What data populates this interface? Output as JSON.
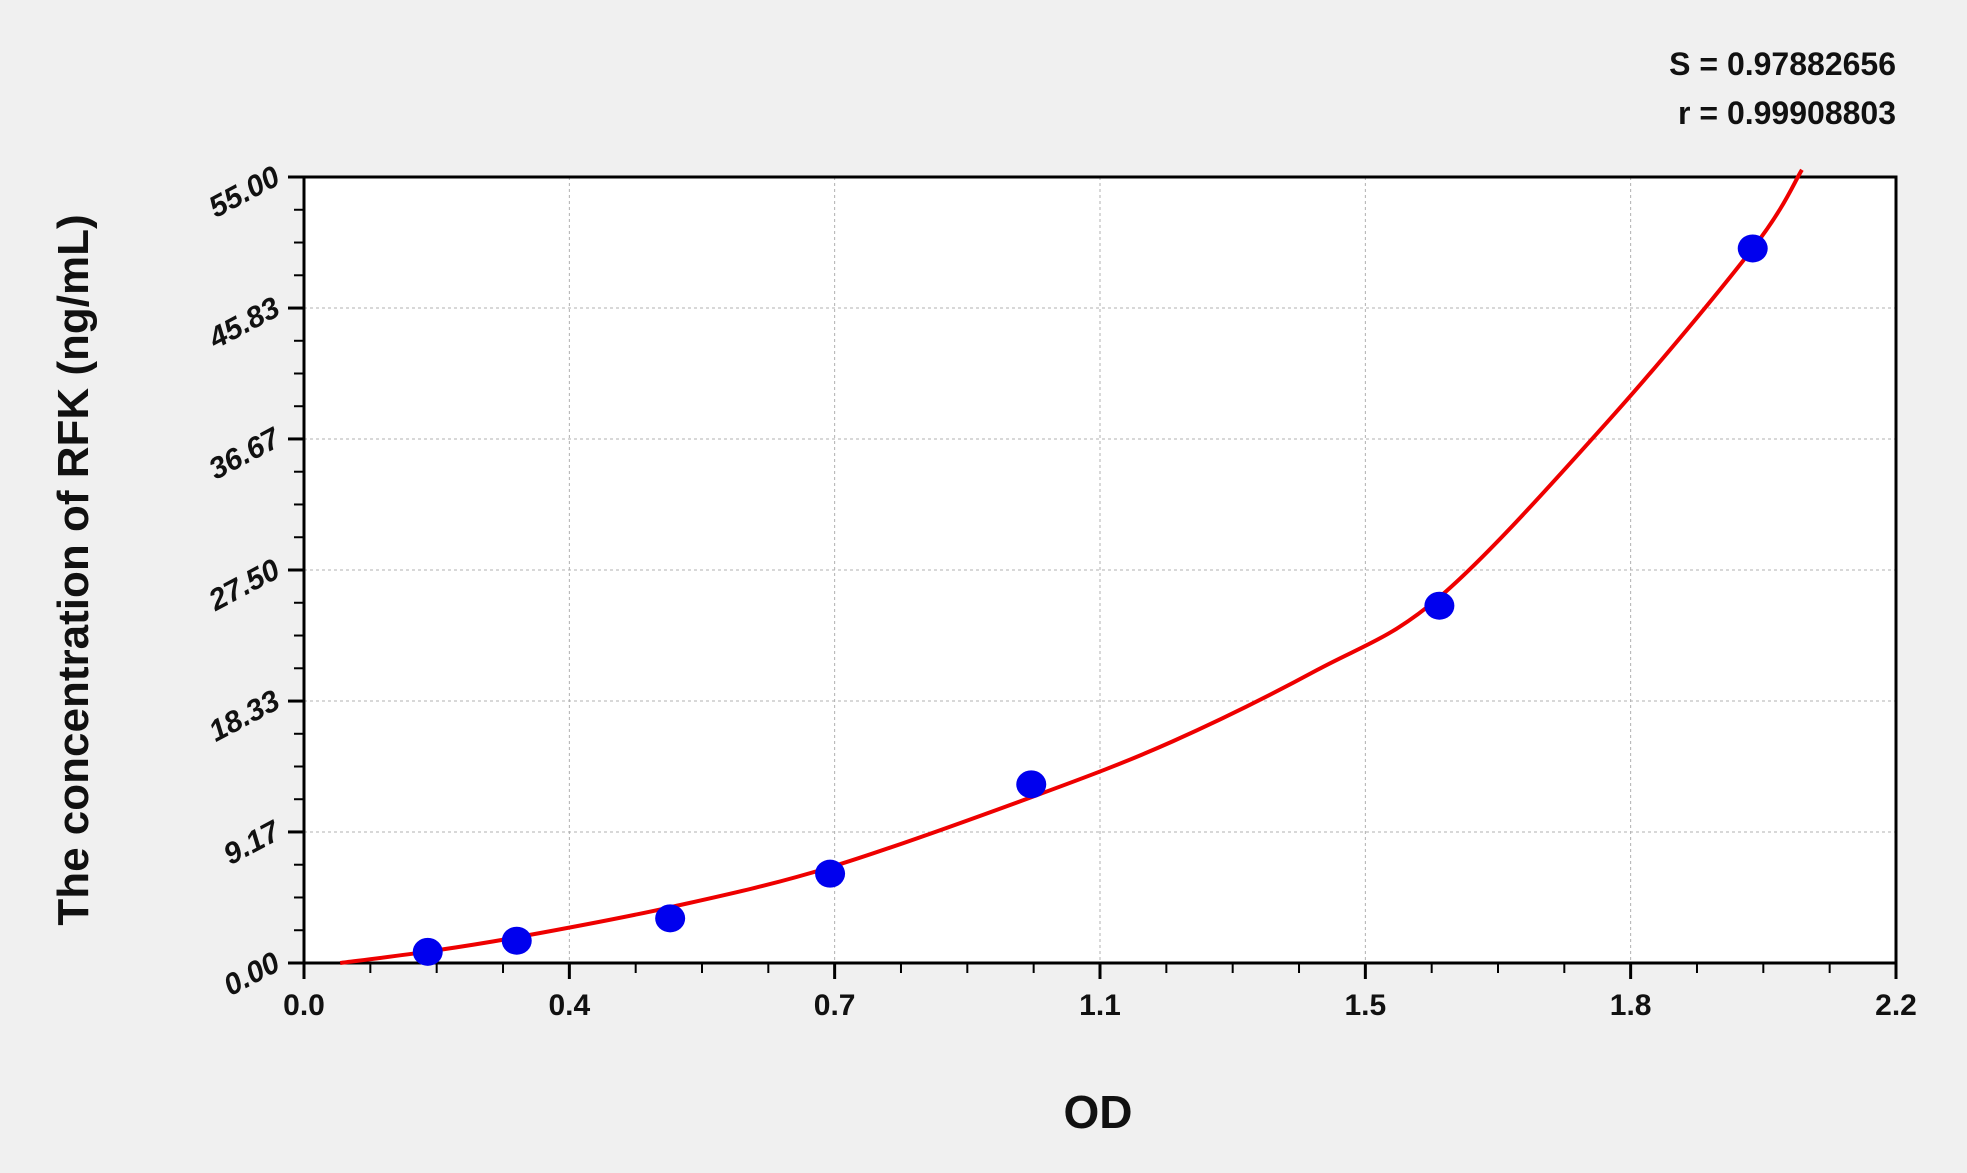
{
  "chart_data": {
    "type": "scatter",
    "xlabel": "OD",
    "ylabel": "The concentration of RFK (ng/mL)",
    "xlim": [
      0,
      2.2
    ],
    "ylim": [
      0,
      55
    ],
    "x_ticks": [
      0.0,
      0.3667,
      0.7333,
      1.1,
      1.4667,
      1.8333,
      2.2
    ],
    "x_tick_labels": [
      "0.0",
      "0.4",
      "0.7",
      "1.1",
      "1.5",
      "1.8",
      "2.2"
    ],
    "y_ticks": [
      0,
      9.17,
      18.33,
      27.5,
      36.67,
      45.83,
      55
    ],
    "y_tick_labels": [
      "0.00",
      "9.17",
      "18.33",
      "27.50",
      "36.67",
      "45.83",
      "55.00"
    ],
    "grid": true,
    "annotations": [
      "S = 0.97882656",
      "r = 0.99908803"
    ],
    "points": {
      "x": [
        0.171,
        0.294,
        0.506,
        0.727,
        1.005,
        1.569,
        2.002
      ],
      "y": [
        0.78,
        1.56,
        3.125,
        6.25,
        12.5,
        25,
        50
      ]
    },
    "fit_curve": {
      "x": [
        0.05,
        0.171,
        0.294,
        0.506,
        0.727,
        1.005,
        1.2,
        1.4,
        1.569,
        1.8,
        2.002,
        2.07
      ],
      "y": [
        0,
        0.8,
        1.8,
        3.9,
        6.7,
        11.6,
        15.5,
        20.5,
        25.6,
        37.8,
        50,
        55.5
      ]
    },
    "colors": {
      "points": "#0000ee",
      "curve": "#ee0000",
      "grid": "#b0b0b0",
      "background": "#f0f0f0",
      "plot_background": "#ffffff"
    }
  }
}
